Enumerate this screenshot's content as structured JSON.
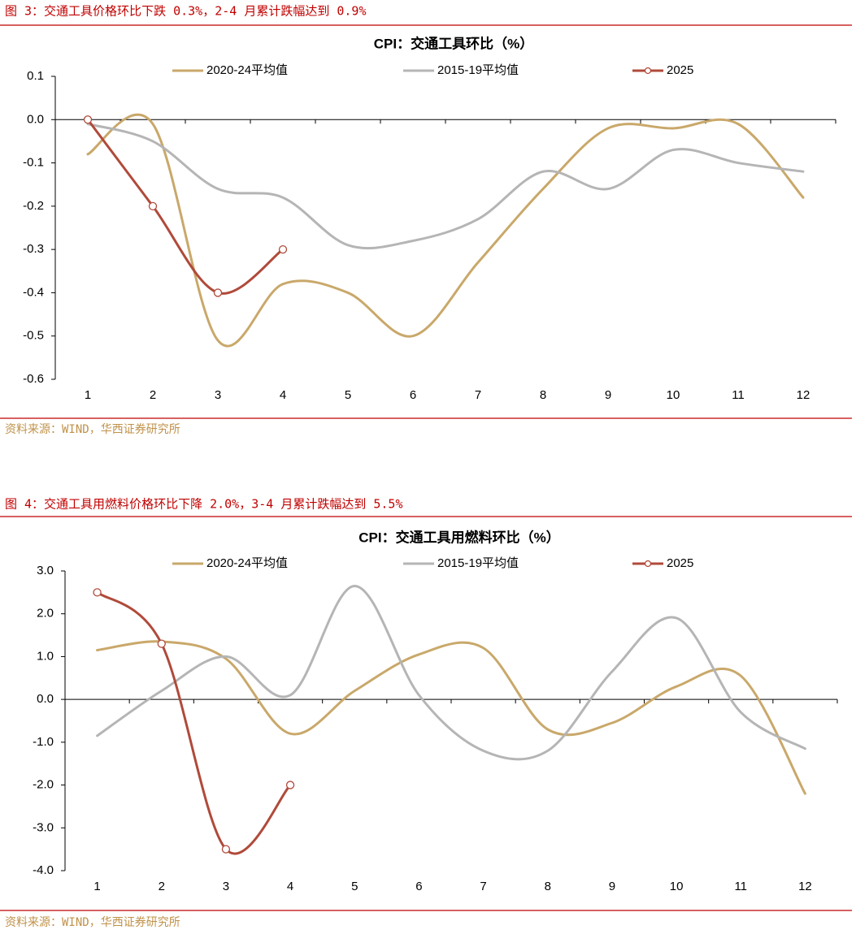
{
  "captions": [
    "图 3：交通工具价格环比下跌 0.3%，2-4 月累计跌幅达到 0.9%",
    "图 4：交通工具用燃料价格环比下降 2.0%，3-4 月累计跌幅达到 5.5%"
  ],
  "sources": [
    "资料来源：WIND，华西证券研究所",
    "资料来源：WIND，华西证券研究所"
  ],
  "chart_data": [
    {
      "type": "line",
      "title": "CPI：交通工具环比（%）",
      "categories": [
        "1",
        "2",
        "3",
        "4",
        "5",
        "6",
        "7",
        "8",
        "9",
        "10",
        "11",
        "12"
      ],
      "series": [
        {
          "name": "2020-24平均值",
          "color": "#c9a86a",
          "values": [
            -0.08,
            -0.01,
            -0.51,
            -0.38,
            -0.4,
            -0.5,
            -0.33,
            -0.16,
            -0.02,
            -0.02,
            -0.01,
            -0.18
          ]
        },
        {
          "name": "2015-19平均值",
          "color": "#b5b5b5",
          "values": [
            -0.01,
            -0.05,
            -0.16,
            -0.18,
            -0.29,
            -0.28,
            -0.23,
            -0.12,
            -0.16,
            -0.07,
            -0.1,
            -0.12
          ]
        },
        {
          "name": "2025",
          "color": "#b04a3a",
          "marker": "circle",
          "values": [
            0.0,
            -0.2,
            -0.4,
            -0.3,
            null,
            null,
            null,
            null,
            null,
            null,
            null,
            null
          ]
        }
      ],
      "ylim": [
        -0.6,
        0.1
      ],
      "yticks": [
        -0.6,
        -0.5,
        -0.4,
        -0.3,
        -0.2,
        -0.1,
        {
          "value": 0,
          "label": "0.0"
        },
        0.1
      ],
      "legend": "top",
      "smooth": true
    },
    {
      "type": "line",
      "title": "CPI：交通工具用燃料环比（%）",
      "categories": [
        "1",
        "2",
        "3",
        "4",
        "5",
        "6",
        "7",
        "8",
        "9",
        "10",
        "11",
        "12"
      ],
      "series": [
        {
          "name": "2020-24平均值",
          "color": "#c9a86a",
          "values": [
            1.15,
            1.35,
            0.95,
            -0.8,
            0.2,
            1.05,
            1.2,
            -0.7,
            -0.55,
            0.3,
            0.55,
            -2.2
          ]
        },
        {
          "name": "2015-19平均值",
          "color": "#b5b5b5",
          "values": [
            -0.85,
            0.2,
            1.0,
            0.1,
            2.65,
            0.1,
            -1.2,
            -1.2,
            0.65,
            1.9,
            -0.3,
            -1.15
          ]
        },
        {
          "name": "2025",
          "color": "#b04a3a",
          "marker": "circle",
          "values": [
            2.5,
            1.3,
            -3.5,
            -2.0,
            null,
            null,
            null,
            null,
            null,
            null,
            null,
            null
          ]
        }
      ],
      "ylim": [
        -4,
        3
      ],
      "yticks": [
        {
          "value": -4,
          "label": "-4.0"
        },
        {
          "value": -3,
          "label": "-3.0"
        },
        {
          "value": -2,
          "label": "-2.0"
        },
        {
          "value": -1,
          "label": "-1.0"
        },
        {
          "value": 0,
          "label": "0.0"
        },
        {
          "value": 1,
          "label": "1.0"
        },
        {
          "value": 2,
          "label": "2.0"
        },
        {
          "value": 3,
          "label": "3.0"
        }
      ],
      "legend": "top",
      "smooth": true
    }
  ]
}
